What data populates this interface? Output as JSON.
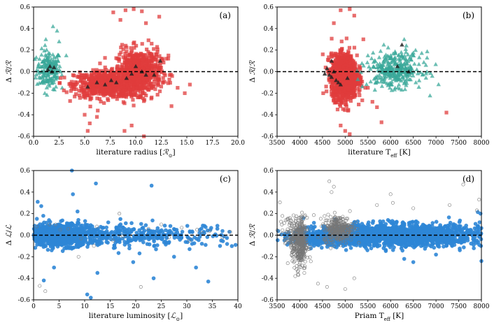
{
  "colors": {
    "red": "#e03c3c",
    "teal": "#3aa89a",
    "blue": "#2e86d6",
    "black": "#222222",
    "open": "#777777"
  },
  "chart_data": [
    {
      "type": "scatter",
      "panel_label": "(a)",
      "xlabel": "literature radius [ℛ⊙]",
      "ylabel": "Δ ℛ/ℛ",
      "xlim": [
        0,
        20
      ],
      "ylim": [
        -0.6,
        0.6
      ],
      "xticks": [
        "0.0",
        "2.5",
        "5.0",
        "7.5",
        "10.0",
        "12.5",
        "15.0",
        "17.5",
        "20.0"
      ],
      "yticks": [
        "0.6",
        "0.4",
        "0.2",
        "0.0",
        "-0.2",
        "-0.4",
        "-0.6"
      ],
      "reference_line_y": 0.0,
      "series": [
        {
          "marker": "triangle",
          "color": "teal",
          "clusters": [
            {
              "cx": 1.5,
              "sx": 0.6,
              "cy": 0.02,
              "sy": 0.09,
              "n": 180
            }
          ],
          "points": [
            [
              1.9,
              0.42
            ],
            [
              2.3,
              0.38
            ],
            [
              2.5,
              0.28
            ],
            [
              1.2,
              0.3
            ],
            [
              3.2,
              0.15
            ],
            [
              2.8,
              -0.15
            ],
            [
              1.1,
              -0.2
            ]
          ]
        },
        {
          "marker": "square",
          "color": "red",
          "clusters": [
            {
              "cx": 7.2,
              "sx": 1.6,
              "cy": -0.12,
              "sy": 0.06,
              "n": 700
            },
            {
              "cx": 10.3,
              "sx": 1.1,
              "cy": 0.0,
              "sy": 0.1,
              "n": 650
            }
          ],
          "points": [
            [
              7.8,
              0.55
            ],
            [
              9.0,
              0.57
            ],
            [
              10.6,
              0.56
            ],
            [
              12.3,
              0.51
            ],
            [
              8.5,
              0.48
            ],
            [
              11.0,
              0.45
            ],
            [
              9.8,
              0.58
            ],
            [
              5.0,
              -0.4
            ],
            [
              5.5,
              -0.48
            ],
            [
              9.6,
              -0.5
            ],
            [
              10.8,
              -0.6
            ],
            [
              8.9,
              -0.55
            ],
            [
              13.5,
              -0.32
            ],
            [
              14.8,
              -0.2
            ],
            [
              15.3,
              -0.12
            ],
            [
              13.0,
              0.12
            ],
            [
              13.2,
              0.15
            ],
            [
              14.1,
              -0.15
            ],
            [
              5.3,
              -0.55
            ],
            [
              6.2,
              -0.42
            ]
          ]
        },
        {
          "marker": "triangle",
          "color": "black",
          "points": [
            [
              1.4,
              0.02
            ],
            [
              1.6,
              0.05
            ],
            [
              1.8,
              0.0
            ],
            [
              2.0,
              0.04
            ],
            [
              5.3,
              -0.14
            ],
            [
              6.2,
              -0.1
            ],
            [
              7.0,
              -0.12
            ],
            [
              7.6,
              -0.08
            ],
            [
              8.1,
              -0.1
            ],
            [
              9.1,
              -0.06
            ],
            [
              10.6,
              0.0
            ],
            [
              11.0,
              -0.03
            ],
            [
              11.8,
              -0.03
            ],
            [
              12.4,
              0.1
            ],
            [
              10.0,
              0.05
            ],
            [
              9.6,
              -0.02
            ]
          ]
        }
      ]
    },
    {
      "type": "scatter",
      "panel_label": "(b)",
      "xlabel": "literature T_eff [K]",
      "ylabel": "Δ ℛ/ℛ",
      "xlim": [
        3500,
        8000
      ],
      "ylim": [
        -0.6,
        0.6
      ],
      "xticks": [
        "3500",
        "4000",
        "4500",
        "5000",
        "5500",
        "6000",
        "6500",
        "7000",
        "7500",
        "8000"
      ],
      "yticks": [
        "0.6",
        "0.4",
        "0.2",
        "0.0",
        "-0.2",
        "-0.4",
        "-0.6"
      ],
      "reference_line_y": 0.0,
      "series": [
        {
          "marker": "square",
          "color": "red",
          "clusters": [
            {
              "cx": 4980,
              "sx": 140,
              "cy": -0.05,
              "sy": 0.1,
              "n": 1400
            }
          ],
          "points": [
            [
              4900,
              0.57
            ],
            [
              5100,
              0.58
            ],
            [
              5200,
              0.52
            ],
            [
              4750,
              0.45
            ],
            [
              5000,
              -0.55
            ],
            [
              5100,
              -0.58
            ],
            [
              4900,
              -0.5
            ],
            [
              5600,
              -0.28
            ],
            [
              5700,
              -0.33
            ],
            [
              5800,
              -0.47
            ],
            [
              5400,
              0.3
            ],
            [
              5500,
              -0.15
            ],
            [
              7230,
              -0.38
            ]
          ]
        },
        {
          "marker": "triangle",
          "color": "teal",
          "clusters": [
            {
              "cx": 6100,
              "sx": 300,
              "cy": 0.02,
              "sy": 0.08,
              "n": 320
            }
          ],
          "points": [
            [
              6300,
              0.3
            ],
            [
              6550,
              0.2
            ],
            [
              5850,
              0.25
            ],
            [
              6100,
              -0.15
            ],
            [
              6800,
              0.0
            ],
            [
              5500,
              0.15
            ]
          ]
        },
        {
          "marker": "triangle",
          "color": "black",
          "points": [
            [
              4600,
              0.03
            ],
            [
              4650,
              -0.03
            ],
            [
              4700,
              -0.05
            ],
            [
              4750,
              0.0
            ],
            [
              4800,
              -0.08
            ],
            [
              4850,
              -0.1
            ],
            [
              4900,
              -0.12
            ],
            [
              5050,
              -0.06
            ],
            [
              4550,
              -0.02
            ],
            [
              6250,
              0.25
            ],
            [
              6150,
              0.05
            ],
            [
              6400,
              0.0
            ],
            [
              4700,
              0.1
            ]
          ]
        }
      ]
    },
    {
      "type": "scatter",
      "panel_label": "(c)",
      "xlabel": "literature luminosity [ℒ⊙]",
      "ylabel": "Δ ℒ/ℒ",
      "xlim": [
        0,
        40
      ],
      "ylim": [
        -0.6,
        0.6
      ],
      "xticks": [
        "0",
        "5",
        "10",
        "15",
        "20",
        "25",
        "30",
        "35",
        "40"
      ],
      "yticks": [
        "0.6",
        "0.4",
        "0.2",
        "0.0",
        "-0.2",
        "-0.4",
        "-0.6"
      ],
      "reference_line_y": 0.0,
      "series": [
        {
          "marker": "circle",
          "color": "blue",
          "clusters": [
            {
              "cx": 5.0,
              "sx": 3.5,
              "cy": 0.0,
              "sy": 0.05,
              "n": 900
            },
            {
              "cx": 20,
              "sx": 10,
              "cy": 0.0,
              "sy": 0.05,
              "n": 350
            }
          ],
          "points": [
            [
              0.8,
              0.31
            ],
            [
              1.5,
              0.27
            ],
            [
              1.9,
              0.18
            ],
            [
              7.5,
              0.6
            ],
            [
              7.7,
              0.38
            ],
            [
              8.6,
              0.22
            ],
            [
              12.2,
              0.48
            ],
            [
              23.1,
              0.46
            ],
            [
              17.0,
              0.15
            ],
            [
              10.5,
              -0.55
            ],
            [
              11.2,
              -0.58
            ],
            [
              2.0,
              -0.42
            ],
            [
              4.0,
              -0.3
            ],
            [
              23.5,
              -0.4
            ],
            [
              34.2,
              -0.43
            ],
            [
              31.8,
              -0.3
            ],
            [
              36.5,
              -0.1
            ],
            [
              28.0,
              0.05
            ],
            [
              12.5,
              -0.35
            ],
            [
              19.5,
              -0.25
            ],
            [
              27.5,
              -0.2
            ]
          ]
        },
        {
          "marker": "open-circle",
          "color": "open",
          "points": [
            [
              1.2,
              -0.47
            ],
            [
              2.3,
              -0.52
            ],
            [
              3.1,
              0.1
            ],
            [
              4.3,
              0.1
            ],
            [
              0.6,
              0.08
            ],
            [
              5.2,
              0.05
            ],
            [
              6.8,
              0.06
            ],
            [
              8.8,
              -0.2
            ],
            [
              9.3,
              -0.03
            ],
            [
              11.8,
              -0.1
            ],
            [
              12.4,
              0.08
            ],
            [
              15.6,
              -0.05
            ],
            [
              16.8,
              0.2
            ],
            [
              17.5,
              -0.01
            ],
            [
              21.0,
              -0.48
            ],
            [
              22.5,
              0.06
            ],
            [
              25.0,
              0.1
            ],
            [
              26.5,
              -0.02
            ],
            [
              29.0,
              0.07
            ],
            [
              30.5,
              -0.05
            ],
            [
              32.0,
              0.05
            ],
            [
              33.0,
              0.02
            ],
            [
              34.5,
              0.04
            ],
            [
              37.0,
              -0.02
            ],
            [
              38.5,
              0.03
            ]
          ]
        }
      ]
    },
    {
      "type": "scatter",
      "panel_label": "(d)",
      "xlabel": "Priam T_eff [K]",
      "ylabel": "Δ ℛ/ℛ",
      "xlim": [
        3500,
        8000
      ],
      "ylim": [
        -0.6,
        0.6
      ],
      "xticks": [
        "3500",
        "4000",
        "4500",
        "5000",
        "5500",
        "6000",
        "6500",
        "7000",
        "7500",
        "8000"
      ],
      "yticks": [
        "0.6",
        "0.4",
        "0.2",
        "0.0",
        "-0.2",
        "-0.4",
        "-0.6"
      ],
      "reference_line_y": 0.0,
      "series": [
        {
          "marker": "circle",
          "color": "blue",
          "clusters": [
            {
              "cx": 6200,
              "sx": 900,
              "cy": 0.0,
              "sy": 0.05,
              "n": 1700
            },
            {
              "cx": 4600,
              "sx": 400,
              "cy": -0.02,
              "sy": 0.04,
              "n": 400
            }
          ],
          "points": [
            [
              7950,
              0.05
            ],
            [
              7980,
              0.2
            ],
            [
              7990,
              -0.1
            ],
            [
              7960,
              0.12
            ],
            [
              7900,
              -0.05
            ],
            [
              6300,
              -0.22
            ],
            [
              6500,
              -0.25
            ],
            [
              7000,
              -0.18
            ],
            [
              5500,
              0.1
            ],
            [
              8000,
              -0.24
            ]
          ]
        },
        {
          "marker": "open-circle",
          "color": "open",
          "clusters": [
            {
              "cx": 4000,
              "sx": 80,
              "cy": -0.08,
              "sy": 0.12,
              "n": 360
            },
            {
              "cx": 4850,
              "sx": 160,
              "cy": 0.06,
              "sy": 0.06,
              "n": 320
            },
            {
              "cx": 3800,
              "sx": 120,
              "cy": 0.02,
              "sy": 0.08,
              "n": 80
            }
          ],
          "points": [
            [
              4650,
              0.5
            ],
            [
              4750,
              0.45
            ],
            [
              4700,
              0.4
            ],
            [
              4400,
              -0.45
            ],
            [
              4600,
              -0.48
            ],
            [
              5000,
              -0.5
            ],
            [
              6050,
              0.3
            ],
            [
              6000,
              0.38
            ],
            [
              6500,
              0.25
            ],
            [
              7300,
              0.28
            ],
            [
              7600,
              0.47
            ],
            [
              7950,
              0.33
            ],
            [
              7900,
              0.23
            ],
            [
              5700,
              0.28
            ],
            [
              5200,
              -0.4
            ],
            [
              3900,
              -0.38
            ],
            [
              4100,
              -0.35
            ]
          ]
        }
      ]
    }
  ]
}
